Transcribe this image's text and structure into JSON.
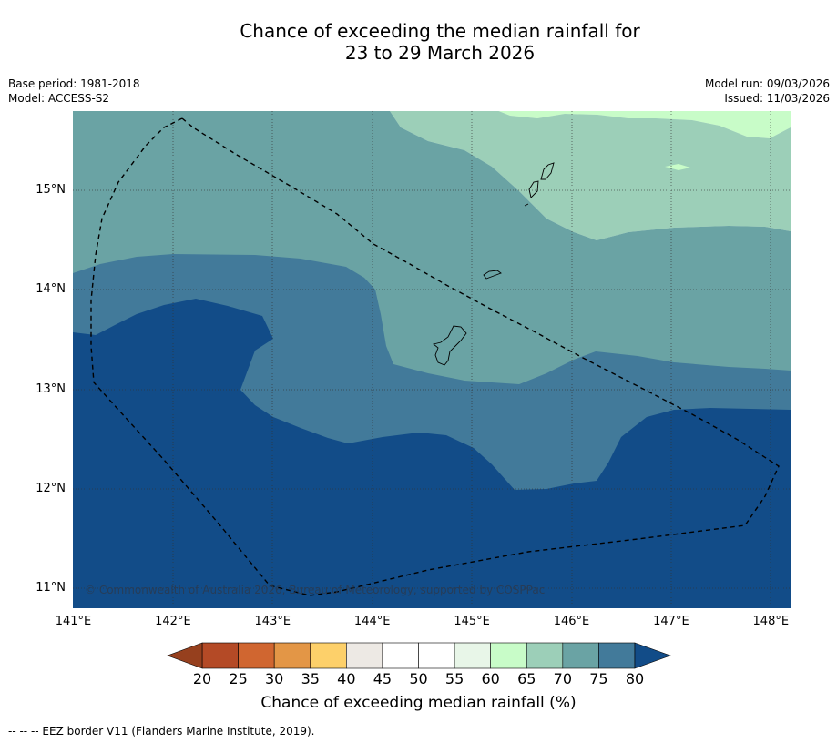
{
  "title_line1": "Chance of exceeding the median rainfall for",
  "title_line2": "23 to 29 March 2026",
  "base_period": "Base period: 1981-2018",
  "model": "Model: ACCESS-S2",
  "model_run": "Model run: 09/03/2026",
  "issued": "Issued: 11/03/2026",
  "copyright": "© Commonwealth of Australia 2026, Bureau of Meteorology, supported by COSPPac",
  "lat_labels": [
    {
      "text": "15°N",
      "value": 15
    },
    {
      "text": "14°N",
      "value": 14
    },
    {
      "text": "13°N",
      "value": 13
    },
    {
      "text": "12°N",
      "value": 12
    },
    {
      "text": "11°N",
      "value": 11
    }
  ],
  "lon_labels": [
    {
      "text": "141°E",
      "value": 141
    },
    {
      "text": "142°E",
      "value": 142
    },
    {
      "text": "143°E",
      "value": 143
    },
    {
      "text": "144°E",
      "value": 144
    },
    {
      "text": "145°E",
      "value": 145
    },
    {
      "text": "146°E",
      "value": 146
    },
    {
      "text": "147°E",
      "value": 147
    },
    {
      "text": "148°E",
      "value": 148
    }
  ],
  "colorbar": {
    "title": "Chance of exceeding median rainfall (%)",
    "ticks": [
      "20",
      "25",
      "30",
      "35",
      "40",
      "45",
      "50",
      "55",
      "60",
      "65",
      "70",
      "75",
      "80"
    ],
    "under_color": "#96401e",
    "over_color": "#124c88",
    "colors": [
      "#b44a26",
      "#d06630",
      "#e39646",
      "#fdd06a",
      "#ede9e4",
      "#ffffff",
      "#ffffff",
      "#e8f6e8",
      "#c8fcc8",
      "#9ccfb8",
      "#6aa3a4",
      "#427a9a"
    ]
  },
  "levels": {
    "lt60": "#e8f6e8",
    "c60_65": "#c8fcc8",
    "c65_70": "#9ccfb8",
    "c70_75": "#6aa3a4",
    "c75_80": "#427a9a",
    "gt80": "#124c88"
  },
  "footnote": "--  --  -- EEZ border V11 (Flanders Marine Institute, 2019)."
}
